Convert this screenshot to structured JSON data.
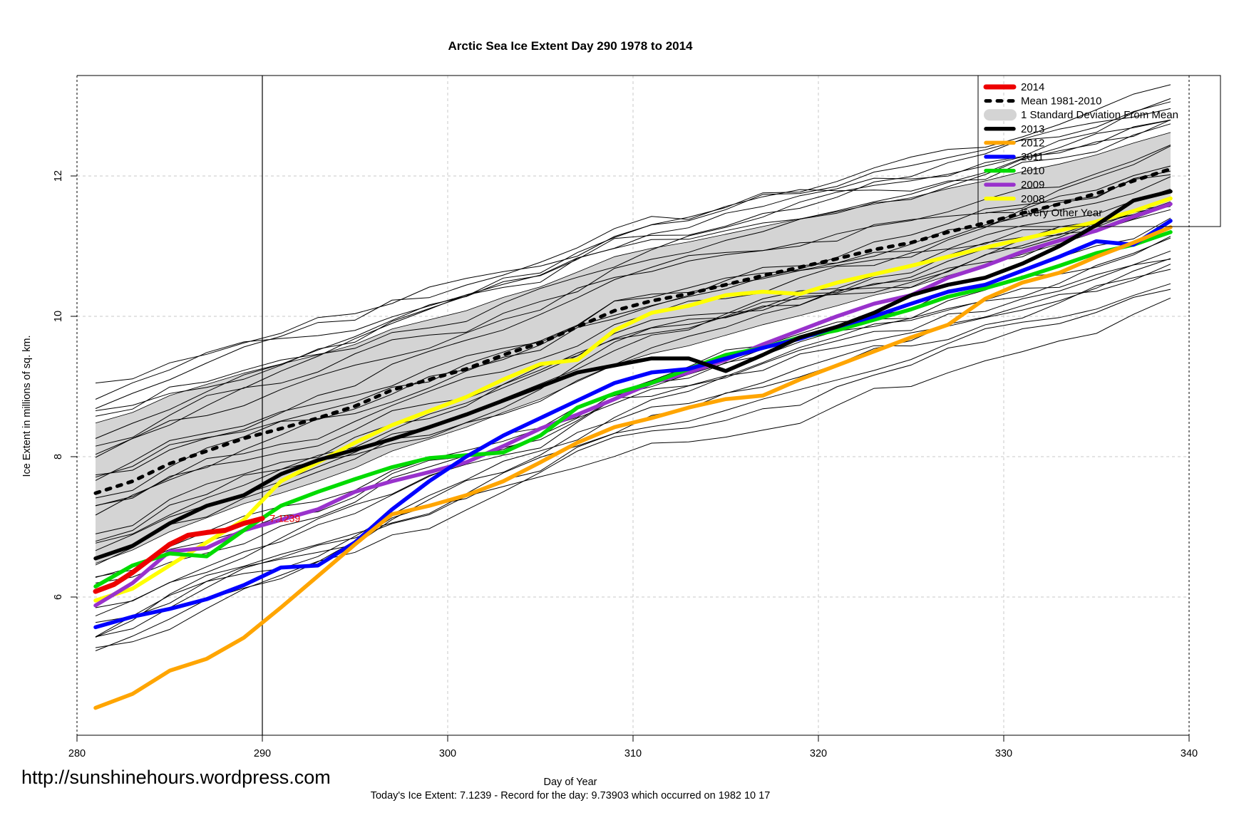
{
  "page": {
    "watermark": "http://sunshinehours.wordpress.com",
    "footnote": "Today's Ice Extent: 7.1239  - Record for the day: 9.73903 which occurred on 1982 10 17"
  },
  "chart_data": {
    "type": "line",
    "title": "Arctic Sea Ice Extent Day 290 1978 to 2014",
    "xlabel": "Day of Year",
    "ylabel": "Ice Extent in millions of sq. km.",
    "xlim": [
      280,
      340
    ],
    "ylim": [
      4.0,
      13.45
    ],
    "xticks": [
      280,
      290,
      300,
      310,
      320,
      330,
      340
    ],
    "yticks": [
      6,
      8,
      10,
      12
    ],
    "grid": "light grey dashed lines at axis ticks",
    "legend_position": "top-right",
    "marker_line_x": 290,
    "annotation": {
      "text": "7.1239",
      "day": 290.4,
      "value": 7.12,
      "color": "#ED0000"
    },
    "x_days": [
      281,
      283,
      285,
      287,
      289,
      291,
      293,
      295,
      297,
      299,
      301,
      303,
      305,
      307,
      309,
      311,
      313,
      315,
      317,
      319,
      321,
      323,
      325,
      327,
      329,
      331,
      333,
      335,
      337,
      339
    ],
    "series": [
      {
        "name": "2014",
        "type": "line",
        "color": "#ED0000",
        "width": 7,
        "x": [
          281,
          282,
          283,
          284,
          285,
          286,
          287,
          288,
          289,
          290
        ],
        "values": [
          6.08,
          6.18,
          6.35,
          6.55,
          6.75,
          6.88,
          6.92,
          6.95,
          7.05,
          7.12
        ]
      },
      {
        "name": "Mean 1981-2010",
        "type": "dashed",
        "color": "#000000",
        "width": 5,
        "values": [
          7.48,
          7.65,
          7.9,
          8.08,
          8.26,
          8.4,
          8.55,
          8.72,
          8.95,
          9.1,
          9.25,
          9.45,
          9.62,
          9.85,
          10.08,
          10.22,
          10.32,
          10.45,
          10.58,
          10.7,
          10.82,
          10.95,
          11.05,
          11.2,
          11.33,
          11.47,
          11.6,
          11.75,
          11.93,
          12.1
        ]
      },
      {
        "name": "1 Standard Deviation From Mean",
        "type": "band",
        "color": "#D4D4D4",
        "upper": [
          8.48,
          8.63,
          8.87,
          9.03,
          9.19,
          9.32,
          9.45,
          9.6,
          9.82,
          9.95,
          10.08,
          10.27,
          10.42,
          10.63,
          10.85,
          10.97,
          11.06,
          11.17,
          11.28,
          11.39,
          11.49,
          11.6,
          11.69,
          11.82,
          11.93,
          12.06,
          12.17,
          12.3,
          12.47,
          12.62
        ],
        "lower": [
          6.48,
          6.67,
          6.93,
          7.13,
          7.33,
          7.48,
          7.65,
          7.84,
          8.08,
          8.25,
          8.42,
          8.63,
          8.82,
          9.07,
          9.31,
          9.47,
          9.58,
          9.73,
          9.88,
          10.01,
          10.15,
          10.3,
          10.41,
          10.58,
          10.73,
          10.88,
          11.03,
          11.2,
          11.39,
          11.58
        ]
      },
      {
        "name": "2013",
        "type": "line",
        "color": "#000000",
        "width": 5.5,
        "values": [
          6.55,
          6.73,
          7.05,
          7.3,
          7.45,
          7.75,
          7.95,
          8.1,
          8.25,
          8.42,
          8.6,
          8.8,
          9.0,
          9.2,
          9.3,
          9.4,
          9.4,
          9.22,
          9.45,
          9.7,
          9.85,
          10.05,
          10.3,
          10.45,
          10.55,
          10.75,
          11.0,
          11.3,
          11.65,
          11.78
        ]
      },
      {
        "name": "2012",
        "type": "line",
        "color": "#FFA500",
        "width": 5.5,
        "values": [
          4.42,
          4.62,
          4.95,
          5.12,
          5.42,
          5.85,
          6.3,
          6.75,
          7.18,
          7.3,
          7.45,
          7.65,
          7.92,
          8.2,
          8.42,
          8.55,
          8.7,
          8.82,
          8.87,
          9.1,
          9.3,
          9.5,
          9.7,
          9.88,
          10.25,
          10.48,
          10.62,
          10.85,
          11.05,
          11.27
        ]
      },
      {
        "name": "2011",
        "type": "line",
        "color": "#0000FF",
        "width": 5.5,
        "values": [
          5.57,
          5.72,
          5.83,
          5.97,
          6.17,
          6.42,
          6.45,
          6.78,
          7.25,
          7.65,
          8.0,
          8.3,
          8.55,
          8.8,
          9.05,
          9.2,
          9.25,
          9.4,
          9.55,
          9.68,
          9.85,
          10.0,
          10.18,
          10.35,
          10.45,
          10.65,
          10.85,
          11.07,
          11.02,
          11.36
        ]
      },
      {
        "name": "2010",
        "type": "line",
        "color": "#00DB00",
        "width": 5.5,
        "values": [
          6.15,
          6.45,
          6.62,
          6.58,
          6.95,
          7.3,
          7.5,
          7.68,
          7.85,
          7.98,
          8.02,
          8.06,
          8.3,
          8.7,
          8.9,
          9.05,
          9.25,
          9.45,
          9.55,
          9.7,
          9.8,
          9.95,
          10.1,
          10.28,
          10.4,
          10.55,
          10.72,
          10.9,
          11.02,
          11.2
        ]
      },
      {
        "name": "2009",
        "type": "line",
        "color": "#9932CC",
        "width": 5.5,
        "values": [
          5.88,
          6.2,
          6.65,
          6.7,
          6.95,
          7.1,
          7.25,
          7.5,
          7.65,
          7.78,
          7.92,
          8.15,
          8.4,
          8.6,
          8.82,
          9.05,
          9.2,
          9.38,
          9.6,
          9.8,
          10.0,
          10.18,
          10.3,
          10.55,
          10.72,
          10.92,
          11.08,
          11.22,
          11.42,
          11.6
        ]
      },
      {
        "name": "2008",
        "type": "line",
        "color": "#FFFF00",
        "width": 5.5,
        "values": [
          5.95,
          6.12,
          6.45,
          6.78,
          7.1,
          7.65,
          7.92,
          8.2,
          8.45,
          8.65,
          8.85,
          9.1,
          9.32,
          9.38,
          9.8,
          10.05,
          10.15,
          10.3,
          10.35,
          10.32,
          10.48,
          10.6,
          10.72,
          10.85,
          10.98,
          11.1,
          11.22,
          11.35,
          11.5,
          11.68
        ]
      },
      {
        "name": "Every Other Year",
        "type": "procedural",
        "color": "#000000",
        "width": 1,
        "count": 32,
        "seed": 20141017,
        "offset_min": -2.4,
        "offset_max": 1.5
      }
    ],
    "legend": [
      {
        "label": "2014",
        "swatch": "line",
        "color": "#ED0000",
        "width": 7
      },
      {
        "label": "Mean 1981-2010",
        "swatch": "dashed",
        "color": "#000000",
        "width": 5
      },
      {
        "label": "1 Standard Deviation From Mean",
        "swatch": "band",
        "color": "#D4D4D4"
      },
      {
        "label": "2013",
        "swatch": "line",
        "color": "#000000",
        "width": 5.5
      },
      {
        "label": "2012",
        "swatch": "line",
        "color": "#FFA500",
        "width": 5.5
      },
      {
        "label": "2011",
        "swatch": "line",
        "color": "#0000FF",
        "width": 5.5
      },
      {
        "label": "2010",
        "swatch": "line",
        "color": "#00DB00",
        "width": 5.5
      },
      {
        "label": "2009",
        "swatch": "line",
        "color": "#9932CC",
        "width": 5.5
      },
      {
        "label": "2008",
        "swatch": "line",
        "color": "#FFFF00",
        "width": 5.5
      },
      {
        "label": "Every Other Year",
        "swatch": "line",
        "color": "#000000",
        "width": 1
      }
    ],
    "colors": {
      "grid": "#C8C8C8",
      "band": "#D4D4D4",
      "frame": "#000000"
    }
  }
}
